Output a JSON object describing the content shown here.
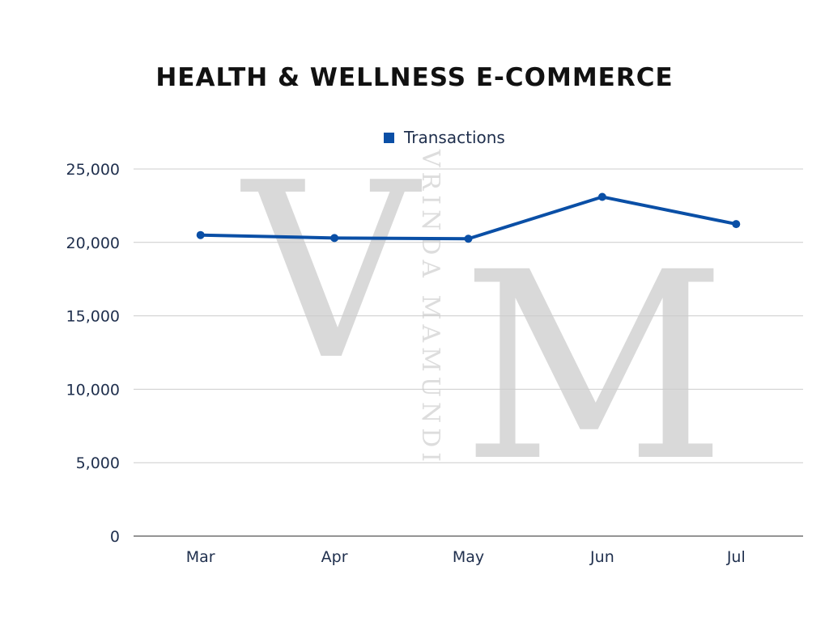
{
  "watermark": {
    "letters": [
      "V",
      "M"
    ],
    "text": "VRINDA MAMUNDI",
    "color": "#d9d9d9"
  },
  "chart_data": {
    "type": "line",
    "title": "HEALTH & WELLNESS E-COMMERCE",
    "xlabel": "",
    "ylabel": "",
    "categories": [
      "Mar",
      "Apr",
      "May",
      "Jun",
      "Jul"
    ],
    "series": [
      {
        "name": "Transactions",
        "values": [
          20500,
          20300,
          20250,
          23100,
          21250
        ],
        "color": "#0a4fa6"
      }
    ],
    "ylim": [
      0,
      25000
    ],
    "yticks": [
      0,
      5000,
      10000,
      15000,
      20000,
      25000
    ],
    "ytick_labels": [
      "0",
      "5,000",
      "10,000",
      "15,000",
      "20,000",
      "25,000"
    ],
    "grid": true,
    "gridline_color": "#cccccc",
    "axis_color": "#555555",
    "legend_position": "top-center"
  }
}
